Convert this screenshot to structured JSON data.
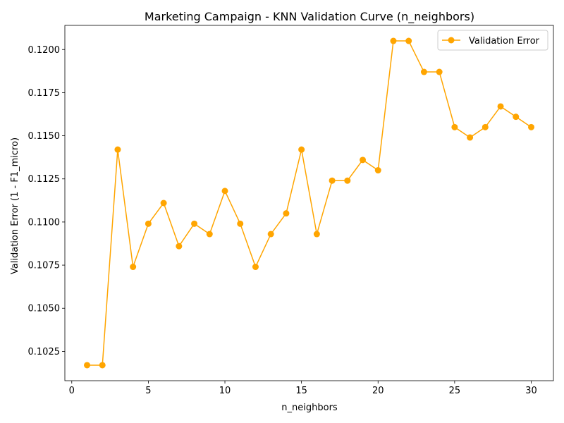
{
  "chart_data": {
    "type": "line",
    "title": "Marketing Campaign - KNN Validation Curve (n_neighbors)",
    "xlabel": "n_neighbors",
    "ylabel": "Validation Error (1 - F1_micro)",
    "xlim": [
      -0.45,
      31.45
    ],
    "ylim": [
      0.1008,
      0.1214
    ],
    "x_ticks": [
      0,
      5,
      10,
      15,
      20,
      25,
      30
    ],
    "x_tick_labels": [
      "0",
      "5",
      "10",
      "15",
      "20",
      "25",
      "30"
    ],
    "y_ticks": [
      0.1025,
      0.105,
      0.1075,
      0.11,
      0.1125,
      0.115,
      0.1175,
      0.12
    ],
    "y_tick_labels": [
      "0.1025",
      "0.1050",
      "0.1075",
      "0.1100",
      "0.1125",
      "0.1150",
      "0.1175",
      "0.1200"
    ],
    "grid": false,
    "legend_position": "top-right",
    "series": [
      {
        "name": "Validation Error",
        "color": "#FFA500",
        "marker": "circle",
        "x": [
          1,
          2,
          3,
          4,
          5,
          6,
          7,
          8,
          9,
          10,
          11,
          12,
          13,
          14,
          15,
          16,
          17,
          18,
          19,
          20,
          21,
          22,
          23,
          24,
          25,
          26,
          27,
          28,
          29,
          30
        ],
        "values": [
          0.1017,
          0.1017,
          0.1142,
          0.1074,
          0.1099,
          0.1111,
          0.1086,
          0.1099,
          0.1093,
          0.1118,
          0.1099,
          0.1074,
          0.1093,
          0.1105,
          0.1142,
          0.1093,
          0.1124,
          0.1124,
          0.1136,
          0.113,
          0.1205,
          0.1205,
          0.1187,
          0.1187,
          0.1155,
          0.1149,
          0.1155,
          0.1167,
          0.1161,
          0.1155
        ]
      }
    ]
  }
}
